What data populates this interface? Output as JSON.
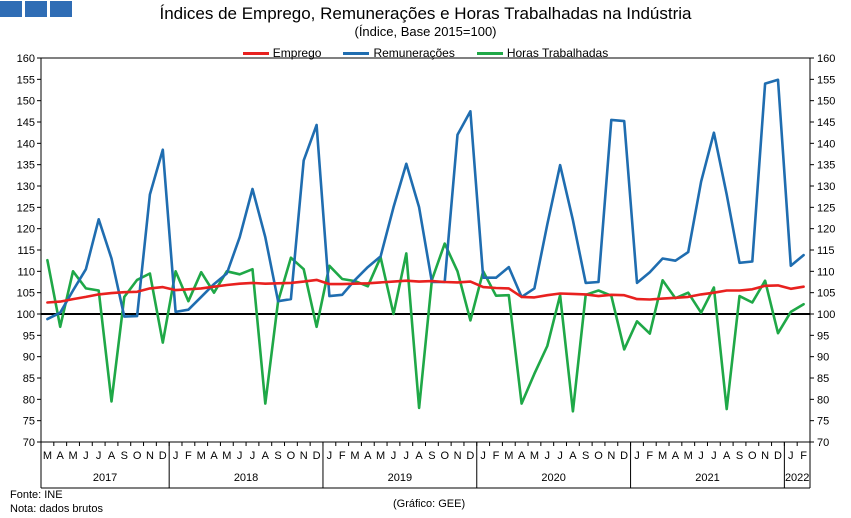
{
  "title": "Índices de Emprego, Remunerações e Horas Trabalhadas na Indústria",
  "subtitle": "(Índice, Base 2015=100)",
  "footer": {
    "source": "Fonte: INE",
    "note": "Nota: dados brutos",
    "credit": "(Gráfico: GEE)"
  },
  "chart_data": {
    "type": "line",
    "ylim": [
      70,
      160
    ],
    "yticks": [
      70,
      75,
      80,
      85,
      90,
      95,
      100,
      105,
      110,
      115,
      120,
      125,
      130,
      135,
      140,
      145,
      150,
      155,
      160
    ],
    "reference_line": 100,
    "grid": false,
    "legend_position": "top-center",
    "month_labels": [
      "M",
      "A",
      "M",
      "J",
      "J",
      "A",
      "S",
      "O",
      "N",
      "D",
      "J",
      "F",
      "M",
      "A",
      "M",
      "J",
      "J",
      "A",
      "S",
      "O",
      "N",
      "D",
      "J",
      "F",
      "M",
      "A",
      "M",
      "J",
      "J",
      "A",
      "S",
      "O",
      "N",
      "D",
      "J",
      "F",
      "M",
      "A",
      "M",
      "J",
      "J",
      "A",
      "S",
      "O",
      "N",
      "D",
      "J",
      "F",
      "M",
      "A",
      "M",
      "J",
      "J",
      "A",
      "S",
      "O",
      "N",
      "D",
      "J",
      "F"
    ],
    "years": [
      {
        "label": "2017",
        "start": 0,
        "count": 10
      },
      {
        "label": "2018",
        "start": 10,
        "count": 12
      },
      {
        "label": "2019",
        "start": 22,
        "count": 12
      },
      {
        "label": "2020",
        "start": 34,
        "count": 12
      },
      {
        "label": "2021",
        "start": 46,
        "count": 12
      },
      {
        "label": "2022",
        "start": 58,
        "count": 2
      }
    ],
    "series": [
      {
        "name": "Emprego",
        "color": "#e8211f",
        "values": [
          102.7,
          102.9,
          103.5,
          104.0,
          104.6,
          104.9,
          105.1,
          105.2,
          106.0,
          106.3,
          105.6,
          105.8,
          106.0,
          106.4,
          106.8,
          107.1,
          107.3,
          107.1,
          107.2,
          107.3,
          107.6,
          108.0,
          107.0,
          107.0,
          107.1,
          107.2,
          107.4,
          107.6,
          107.8,
          107.6,
          107.7,
          107.5,
          107.4,
          107.6,
          106.3,
          106.1,
          106.0,
          104.0,
          103.9,
          104.4,
          104.8,
          104.7,
          104.6,
          104.2,
          104.5,
          104.4,
          103.5,
          103.4,
          103.6,
          103.8,
          104.0,
          104.6,
          105.0,
          105.5,
          105.5,
          105.8,
          106.6,
          106.7,
          105.9,
          106.4
        ]
      },
      {
        "name": "Remunerações",
        "color": "#1f6db0",
        "values": [
          98.8,
          100.3,
          105.5,
          110.5,
          122.2,
          113.0,
          99.4,
          99.5,
          128.0,
          138.5,
          100.5,
          101.0,
          104.0,
          107.0,
          109.5,
          118.0,
          129.3,
          118.0,
          103.0,
          103.5,
          136.0,
          144.3,
          104.2,
          104.5,
          108.0,
          111.0,
          113.5,
          125.0,
          135.2,
          125.0,
          107.5,
          107.5,
          142.0,
          147.5,
          108.5,
          108.5,
          111.0,
          104.0,
          106.0,
          121.0,
          134.9,
          122.0,
          107.3,
          107.5,
          145.5,
          145.2,
          107.3,
          109.8,
          113.0,
          112.5,
          114.5,
          131.0,
          142.5,
          128.0,
          112.0,
          112.3,
          154.0,
          154.9,
          111.3,
          113.8
        ]
      },
      {
        "name": "Horas Trabalhadas",
        "color": "#1fa847",
        "values": [
          112.6,
          97.0,
          110.0,
          106.0,
          105.5,
          79.5,
          104.0,
          108.0,
          109.5,
          93.3,
          110.0,
          103.0,
          109.8,
          105.0,
          110.0,
          109.3,
          110.5,
          79.0,
          103.0,
          113.2,
          110.5,
          97.0,
          111.3,
          108.2,
          107.7,
          106.5,
          113.3,
          100.0,
          114.2,
          78.0,
          108.0,
          116.5,
          110.0,
          98.5,
          110.0,
          104.3,
          104.4,
          79.0,
          86.0,
          92.5,
          104.4,
          77.2,
          104.5,
          105.5,
          104.3,
          91.7,
          98.3,
          95.4,
          107.9,
          103.7,
          105.0,
          100.3,
          106.2,
          77.7,
          104.2,
          102.7,
          107.8,
          95.5,
          100.5,
          102.3
        ]
      }
    ]
  }
}
